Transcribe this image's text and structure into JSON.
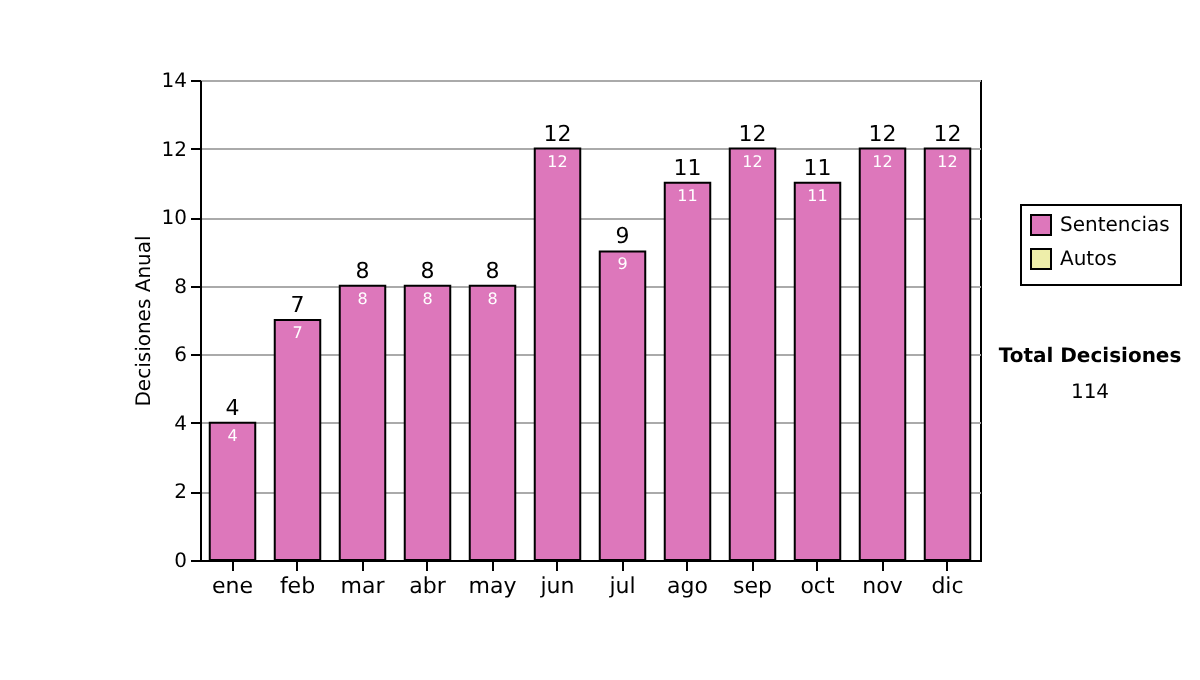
{
  "chart_data": {
    "type": "bar",
    "stacked": true,
    "categories": [
      "ene",
      "feb",
      "mar",
      "abr",
      "may",
      "jun",
      "jul",
      "ago",
      "sep",
      "oct",
      "nov",
      "dic"
    ],
    "series": [
      {
        "name": "Sentencias",
        "color": "#dd77bb",
        "values": [
          4,
          7,
          8,
          8,
          8,
          12,
          9,
          11,
          12,
          11,
          12,
          12
        ]
      },
      {
        "name": "Autos",
        "color": "#eeeeaa",
        "values": [
          null,
          null,
          null,
          null,
          null,
          null,
          null,
          null,
          null,
          null,
          null,
          null
        ]
      }
    ],
    "data_labels": true,
    "totals": [
      "4",
      "7",
      "8",
      "8",
      "8",
      "12",
      "9",
      "11",
      "12",
      "11",
      "12",
      "12"
    ],
    "ylabel": "Decisiones Anual",
    "ylim": [
      0,
      14
    ],
    "yticks": [
      0,
      2,
      4,
      6,
      8,
      10,
      12,
      14
    ],
    "grid": "y",
    "legend": "right",
    "annotations": [
      "Total Decisiones",
      "114"
    ]
  }
}
